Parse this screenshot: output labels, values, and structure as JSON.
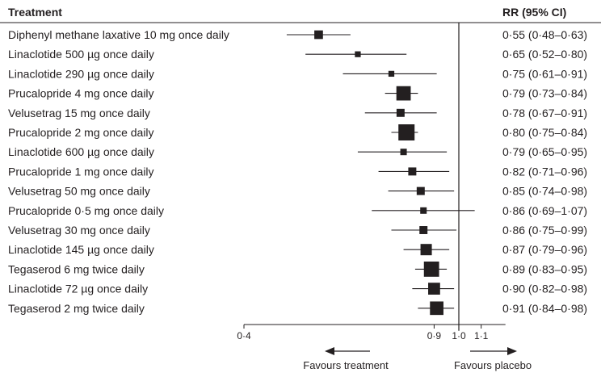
{
  "chart_data": {
    "type": "forest",
    "headers": {
      "treatment": "Treatment",
      "rr": "RR (95% CI)"
    },
    "xscale": "log",
    "xlim": [
      0.4,
      1.22
    ],
    "reference_line": 1.0,
    "ticks": [
      {
        "value": 0.4,
        "label": "0·4"
      },
      {
        "value": 0.9,
        "label": "0·9"
      },
      {
        "value": 1.0,
        "label": "1·0"
      },
      {
        "value": 1.1,
        "label": "1·1"
      }
    ],
    "favours": {
      "left": "Favours treatment",
      "right": "Favours placebo"
    },
    "rows": [
      {
        "treatment": "Diphenyl methane laxative 10 mg once daily",
        "rr": 0.55,
        "lo": 0.48,
        "hi": 0.63,
        "label": "0·55 (0·48–0·63)",
        "weight": 0.38
      },
      {
        "treatment": "Linaclotide 500 µg once daily",
        "rr": 0.65,
        "lo": 0.52,
        "hi": 0.8,
        "label": "0·65 (0·52–0·80)",
        "weight": 0.15
      },
      {
        "treatment": "Linaclotide 290 µg once daily",
        "rr": 0.75,
        "lo": 0.61,
        "hi": 0.91,
        "label": "0·75 (0·61–0·91)",
        "weight": 0.15
      },
      {
        "treatment": "Prucalopride 4 mg once daily",
        "rr": 0.79,
        "lo": 0.73,
        "hi": 0.84,
        "label": "0·79 (0·73–0·84)",
        "weight": 0.85
      },
      {
        "treatment": "Velusetrag 15 mg once daily",
        "rr": 0.78,
        "lo": 0.67,
        "hi": 0.91,
        "label": "0·78 (0·67–0·91)",
        "weight": 0.33
      },
      {
        "treatment": "Prucalopride 2 mg once daily",
        "rr": 0.8,
        "lo": 0.75,
        "hi": 0.84,
        "label": "0·80 (0·75–0·84)",
        "weight": 1.0
      },
      {
        "treatment": "Linaclotide 600 µg once daily",
        "rr": 0.79,
        "lo": 0.65,
        "hi": 0.95,
        "label": "0·79 (0·65–0·95)",
        "weight": 0.2
      },
      {
        "treatment": "Prucalopride 1 mg once daily",
        "rr": 0.82,
        "lo": 0.71,
        "hi": 0.96,
        "label": "0·82 (0·71–0·96)",
        "weight": 0.33
      },
      {
        "treatment": "Velusetrag 50 mg once daily",
        "rr": 0.85,
        "lo": 0.74,
        "hi": 0.98,
        "label": "0·85 (0·74–0·98)",
        "weight": 0.33
      },
      {
        "treatment": "Prucalopride 0·5 mg once daily",
        "rr": 0.86,
        "lo": 0.69,
        "hi": 1.07,
        "label": "0·86 (0·69–1·07)",
        "weight": 0.2
      },
      {
        "treatment": "Velusetrag 30 mg once daily",
        "rr": 0.86,
        "lo": 0.75,
        "hi": 0.99,
        "label": "0·86 (0·75–0·99)",
        "weight": 0.33
      },
      {
        "treatment": "Linaclotide 145 µg once daily",
        "rr": 0.87,
        "lo": 0.79,
        "hi": 0.96,
        "label": "0·87 (0·79–0·96)",
        "weight": 0.6
      },
      {
        "treatment": "Tegaserod 6 mg twice daily",
        "rr": 0.89,
        "lo": 0.83,
        "hi": 0.95,
        "label": "0·89 (0·83–0·95)",
        "weight": 0.92
      },
      {
        "treatment": "Linaclotide 72 µg once daily",
        "rr": 0.9,
        "lo": 0.82,
        "hi": 0.98,
        "label": "0·90 (0·82–0·98)",
        "weight": 0.65
      },
      {
        "treatment": "Tegaserod 2 mg twice daily",
        "rr": 0.91,
        "lo": 0.84,
        "hi": 0.98,
        "label": "0·91 (0·84–0·98)",
        "weight": 0.78
      }
    ]
  }
}
